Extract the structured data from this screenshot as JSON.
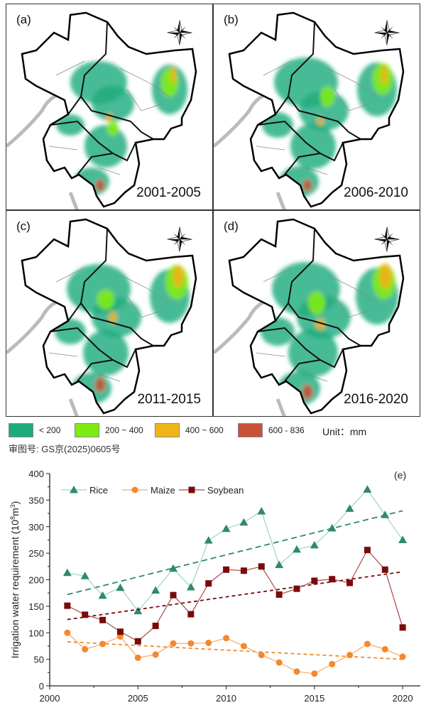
{
  "maps": {
    "panels": [
      {
        "label": "(a)",
        "period": "2001-2005"
      },
      {
        "label": "(b)",
        "period": "2006-2010"
      },
      {
        "label": "(c)",
        "period": "2011-2015"
      },
      {
        "label": "(d)",
        "period": "2016-2020"
      }
    ],
    "compass": {
      "n": "N",
      "s": "S",
      "e": "E",
      "w": "W"
    },
    "legend": [
      {
        "label": "< 200",
        "color": "#1daa7c"
      },
      {
        "label": "200 ~ 400",
        "color": "#7eec12"
      },
      {
        "label": "400 ~ 600",
        "color": "#f0b418"
      },
      {
        "label": "600 - 836",
        "color": "#c8513a"
      }
    ],
    "unit": "Unit：mm",
    "review_number": "审图号: GS京(2025)0605号"
  },
  "chart_data": {
    "type": "line",
    "panel_label": "(e)",
    "xlabel": "",
    "ylabel": "Irrigation water requirement (10^8m^3)",
    "ylabel_main": "Irrigation water requirement (10",
    "ylabel_exp1": "8",
    "ylabel_mid": "m",
    "ylabel_exp2": "3",
    "ylabel_end": ")",
    "xlim": [
      2000,
      2021
    ],
    "ylim": [
      0,
      400
    ],
    "xticks": [
      2000,
      2005,
      2010,
      2015,
      2020
    ],
    "yticks": [
      0,
      50,
      100,
      150,
      200,
      250,
      300,
      350,
      400
    ],
    "legend_position": "top-left",
    "x": [
      2001,
      2002,
      2003,
      2004,
      2005,
      2006,
      2007,
      2008,
      2009,
      2010,
      2011,
      2012,
      2013,
      2014,
      2015,
      2016,
      2017,
      2018,
      2019,
      2020
    ],
    "series": [
      {
        "name": "Rice",
        "color": "#2e8b6a",
        "line_color": "#9fd4bf",
        "marker": "triangle",
        "values": [
          213,
          207,
          170,
          185,
          141,
          180,
          221,
          186,
          274,
          296,
          308,
          329,
          228,
          257,
          265,
          297,
          334,
          370,
          322,
          275
        ],
        "trend": [
          172,
          330
        ]
      },
      {
        "name": "Maize",
        "color": "#f4882a",
        "line_color": "#f7a860",
        "marker": "circle",
        "values": [
          100,
          69,
          79,
          93,
          53,
          59,
          80,
          80,
          81,
          90,
          75,
          58,
          44,
          27,
          23,
          41,
          58,
          79,
          69,
          55
        ],
        "trend": [
          83,
          50
        ]
      },
      {
        "name": "Soybean",
        "color": "#7a0a0a",
        "line_color": "#a84a4a",
        "marker": "square",
        "values": [
          151,
          134,
          124,
          102,
          84,
          113,
          171,
          135,
          193,
          219,
          217,
          225,
          172,
          183,
          198,
          201,
          194,
          256,
          219,
          110
        ],
        "trend": [
          125,
          215
        ]
      }
    ]
  }
}
